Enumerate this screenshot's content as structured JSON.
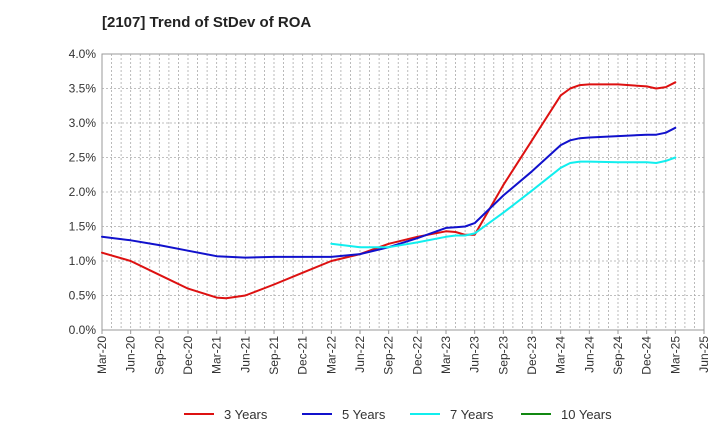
{
  "title": "[2107]  Trend of StDev of ROA",
  "chart_data": {
    "type": "line",
    "title": "[2107]  Trend of StDev of ROA",
    "xlabel": "",
    "ylabel": "",
    "x_tick_labels": [
      "Mar-20",
      "Jun-20",
      "Sep-20",
      "Dec-20",
      "Mar-21",
      "Jun-21",
      "Sep-21",
      "Dec-21",
      "Mar-22",
      "Jun-22",
      "Sep-22",
      "Dec-22",
      "Mar-23",
      "Jun-23",
      "Sep-23",
      "Dec-23",
      "Mar-24",
      "Jun-24",
      "Sep-24",
      "Dec-24",
      "Mar-25",
      "Jun-25"
    ],
    "y_tick_labels": [
      "0.0%",
      "0.5%",
      "1.0%",
      "1.5%",
      "2.0%",
      "2.5%",
      "3.0%",
      "3.5%",
      "4.0%"
    ],
    "ylim": [
      0,
      4.0
    ],
    "grid": true,
    "legend_position": "bottom",
    "series": [
      {
        "name": "3 Years",
        "color": "#dd1111",
        "x": [
          "Mar-20",
          "Jun-20",
          "Sep-20",
          "Dec-20",
          "Mar-21",
          "Apr-21",
          "Jun-21",
          "Sep-21",
          "Dec-21",
          "Mar-22",
          "Jun-22",
          "Sep-22",
          "Dec-22",
          "Mar-23",
          "Apr-23",
          "May-23",
          "Jun-23",
          "Sep-23",
          "Dec-23",
          "Mar-24",
          "Apr-24",
          "May-24",
          "Jun-24",
          "Sep-24",
          "Dec-24",
          "Jan-25",
          "Feb-25",
          "Mar-25"
        ],
        "values": [
          1.12,
          1.0,
          0.8,
          0.6,
          0.47,
          0.46,
          0.5,
          0.66,
          0.83,
          1.0,
          1.1,
          1.25,
          1.35,
          1.43,
          1.42,
          1.38,
          1.38,
          2.1,
          2.75,
          3.4,
          3.5,
          3.55,
          3.56,
          3.56,
          3.53,
          3.5,
          3.52,
          3.59
        ]
      },
      {
        "name": "5 Years",
        "color": "#1111cc",
        "x": [
          "Mar-20",
          "Jun-20",
          "Sep-20",
          "Dec-20",
          "Mar-21",
          "Jun-21",
          "Sep-21",
          "Dec-21",
          "Mar-22",
          "Jun-22",
          "Sep-22",
          "Dec-22",
          "Mar-23",
          "Apr-23",
          "May-23",
          "Jun-23",
          "Sep-23",
          "Dec-23",
          "Mar-24",
          "Apr-24",
          "May-24",
          "Jun-24",
          "Sep-24",
          "Dec-24",
          "Jan-25",
          "Feb-25",
          "Mar-25"
        ],
        "values": [
          1.35,
          1.3,
          1.23,
          1.15,
          1.07,
          1.05,
          1.06,
          1.06,
          1.06,
          1.1,
          1.2,
          1.33,
          1.48,
          1.49,
          1.5,
          1.55,
          1.95,
          2.3,
          2.68,
          2.75,
          2.78,
          2.79,
          2.81,
          2.83,
          2.83,
          2.86,
          2.93
        ]
      },
      {
        "name": "7 Years",
        "color": "#11eeee",
        "x": [
          "Mar-22",
          "Jun-22",
          "Sep-22",
          "Dec-22",
          "Mar-23",
          "Apr-23",
          "May-23",
          "Jun-23",
          "Sep-23",
          "Dec-23",
          "Mar-24",
          "Apr-24",
          "May-24",
          "Jun-24",
          "Sep-24",
          "Dec-24",
          "Jan-25",
          "Feb-25",
          "Mar-25"
        ],
        "values": [
          1.25,
          1.2,
          1.2,
          1.27,
          1.35,
          1.37,
          1.37,
          1.4,
          1.7,
          2.02,
          2.35,
          2.42,
          2.44,
          2.44,
          2.43,
          2.43,
          2.42,
          2.45,
          2.5
        ]
      },
      {
        "name": "10 Years",
        "color": "#118811",
        "x": [],
        "values": []
      }
    ]
  }
}
